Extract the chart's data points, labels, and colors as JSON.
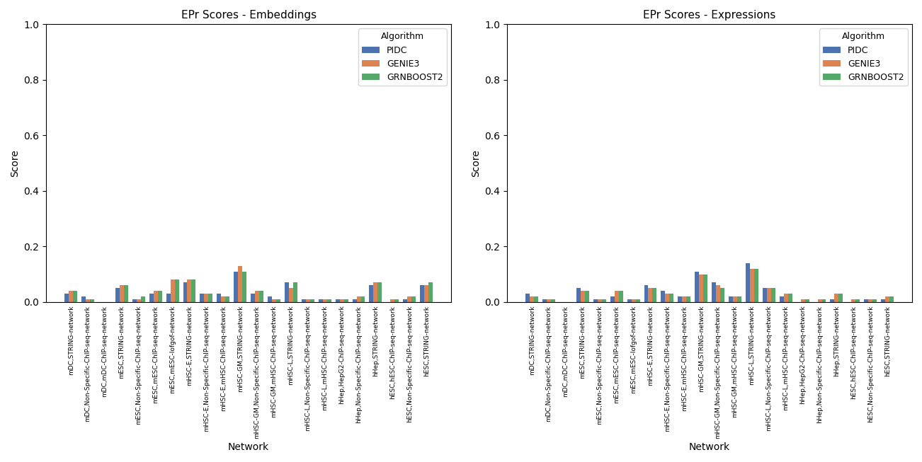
{
  "left_title": "EPr Scores - Embeddings",
  "right_title": "EPr Scores - Expressions",
  "xlabel": "Network",
  "ylabel": "Score",
  "ylim": [
    0,
    1.0
  ],
  "yticks": [
    0.0,
    0.2,
    0.4,
    0.6,
    0.8,
    1.0
  ],
  "algorithms": [
    "PIDC",
    "GENIE3",
    "GRNBOOST2"
  ],
  "colors": [
    "#4c72b0",
    "#dd8452",
    "#55a868"
  ],
  "categories": [
    "mDC,STRING-network",
    "mDC,Non-Specific-ChIP-seq-network",
    "mDC,mDC-ChIP-seq-network",
    "mESC,STRING-network",
    "mESC,Non-Specific-ChIP-seq-network",
    "mESC,mESC-ChIP-seq-network",
    "mESC,mESC-lofgof-network",
    "mHSC-E,STRING-network",
    "mHSC-E,Non-Specific-ChIP-seq-network",
    "mHSC-E,mHSC-ChIP-seq-network",
    "mHSC-GM,STRING-network",
    "mHSC-GM,Non-Specific-ChIP-seq-network",
    "mHSC-GM,mHSC-ChIP-seq-network",
    "mHSC-L,STRING-network",
    "mHSC-L,Non-Specific-ChIP-seq-network",
    "mHSC-L,mHSC-ChIP-seq-network",
    "hHep,HepG2-ChIP-seq-network",
    "hHep,Non-Specific-ChIP-seq-network",
    "hHep,STRING-network",
    "hESC,hESC-ChIP-seq-network",
    "hESC,Non-Specific-ChIP-seq-network",
    "hESC,STRING-network"
  ],
  "left_data": {
    "PIDC": [
      0.03,
      0.02,
      0.0,
      0.05,
      0.01,
      0.03,
      0.03,
      0.07,
      0.03,
      0.03,
      0.11,
      0.03,
      0.02,
      0.07,
      0.01,
      0.01,
      0.01,
      0.01,
      0.06,
      0.0,
      0.01,
      0.06
    ],
    "GENIE3": [
      0.04,
      0.01,
      0.0,
      0.06,
      0.01,
      0.04,
      0.08,
      0.08,
      0.03,
      0.02,
      0.13,
      0.04,
      0.01,
      0.05,
      0.01,
      0.01,
      0.01,
      0.02,
      0.07,
      0.01,
      0.02,
      0.06
    ],
    "GRNBOOST2": [
      0.04,
      0.01,
      0.0,
      0.06,
      0.02,
      0.04,
      0.08,
      0.08,
      0.03,
      0.02,
      0.11,
      0.04,
      0.01,
      0.07,
      0.01,
      0.01,
      0.01,
      0.02,
      0.07,
      0.01,
      0.02,
      0.07
    ]
  },
  "right_data": {
    "PIDC": [
      0.03,
      0.01,
      0.0,
      0.05,
      0.01,
      0.02,
      0.01,
      0.06,
      0.04,
      0.02,
      0.11,
      0.07,
      0.02,
      0.14,
      0.05,
      0.02,
      0.0,
      0.0,
      0.01,
      0.0,
      0.01,
      0.01
    ],
    "GENIE3": [
      0.02,
      0.01,
      0.0,
      0.04,
      0.01,
      0.04,
      0.01,
      0.05,
      0.03,
      0.02,
      0.1,
      0.06,
      0.02,
      0.12,
      0.05,
      0.03,
      0.01,
      0.01,
      0.03,
      0.01,
      0.01,
      0.02
    ],
    "GRNBOOST2": [
      0.02,
      0.01,
      0.0,
      0.04,
      0.01,
      0.04,
      0.01,
      0.05,
      0.03,
      0.02,
      0.1,
      0.05,
      0.02,
      0.12,
      0.05,
      0.03,
      0.01,
      0.01,
      0.03,
      0.01,
      0.01,
      0.02
    ]
  },
  "legend_title": "Algorithm",
  "bar_width": 0.25,
  "figsize": [
    13.02,
    6.53
  ],
  "dpi": 100
}
